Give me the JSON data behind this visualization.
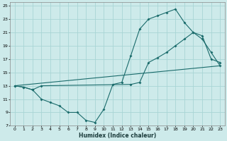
{
  "xlabel": "Humidex (Indice chaleur)",
  "bg_color": "#cdeaea",
  "grid_color": "#a8d5d5",
  "line_color": "#1a6b6b",
  "xlim": [
    -0.5,
    23.5
  ],
  "ylim": [
    7,
    25.5
  ],
  "xticks": [
    0,
    1,
    2,
    3,
    4,
    5,
    6,
    7,
    8,
    9,
    10,
    11,
    12,
    13,
    14,
    15,
    16,
    17,
    18,
    19,
    20,
    21,
    22,
    23
  ],
  "yticks": [
    7,
    9,
    11,
    13,
    15,
    17,
    19,
    21,
    23,
    25
  ],
  "curve1_x": [
    0,
    1,
    2,
    3,
    4,
    5,
    6,
    7,
    8,
    9,
    10,
    11,
    12,
    13,
    14,
    15,
    16,
    17,
    18,
    19,
    20,
    21,
    22,
    23
  ],
  "curve1_y": [
    13.0,
    12.8,
    12.4,
    11.0,
    10.5,
    10.0,
    9.0,
    9.0,
    7.8,
    7.5,
    9.5,
    13.2,
    13.5,
    17.5,
    21.5,
    23.0,
    23.5,
    24.0,
    24.5,
    22.5,
    21.0,
    20.5,
    17.0,
    16.5
  ],
  "curve2_x": [
    0,
    1,
    2,
    3,
    13,
    14,
    15,
    16,
    17,
    18,
    19,
    20,
    21,
    22,
    23
  ],
  "curve2_y": [
    13.0,
    12.8,
    12.4,
    13.0,
    13.2,
    13.5,
    16.5,
    17.2,
    18.0,
    19.0,
    20.0,
    21.0,
    20.0,
    18.0,
    16.0
  ],
  "curve3_x": [
    0,
    23
  ],
  "curve3_y": [
    13.0,
    16.0
  ]
}
